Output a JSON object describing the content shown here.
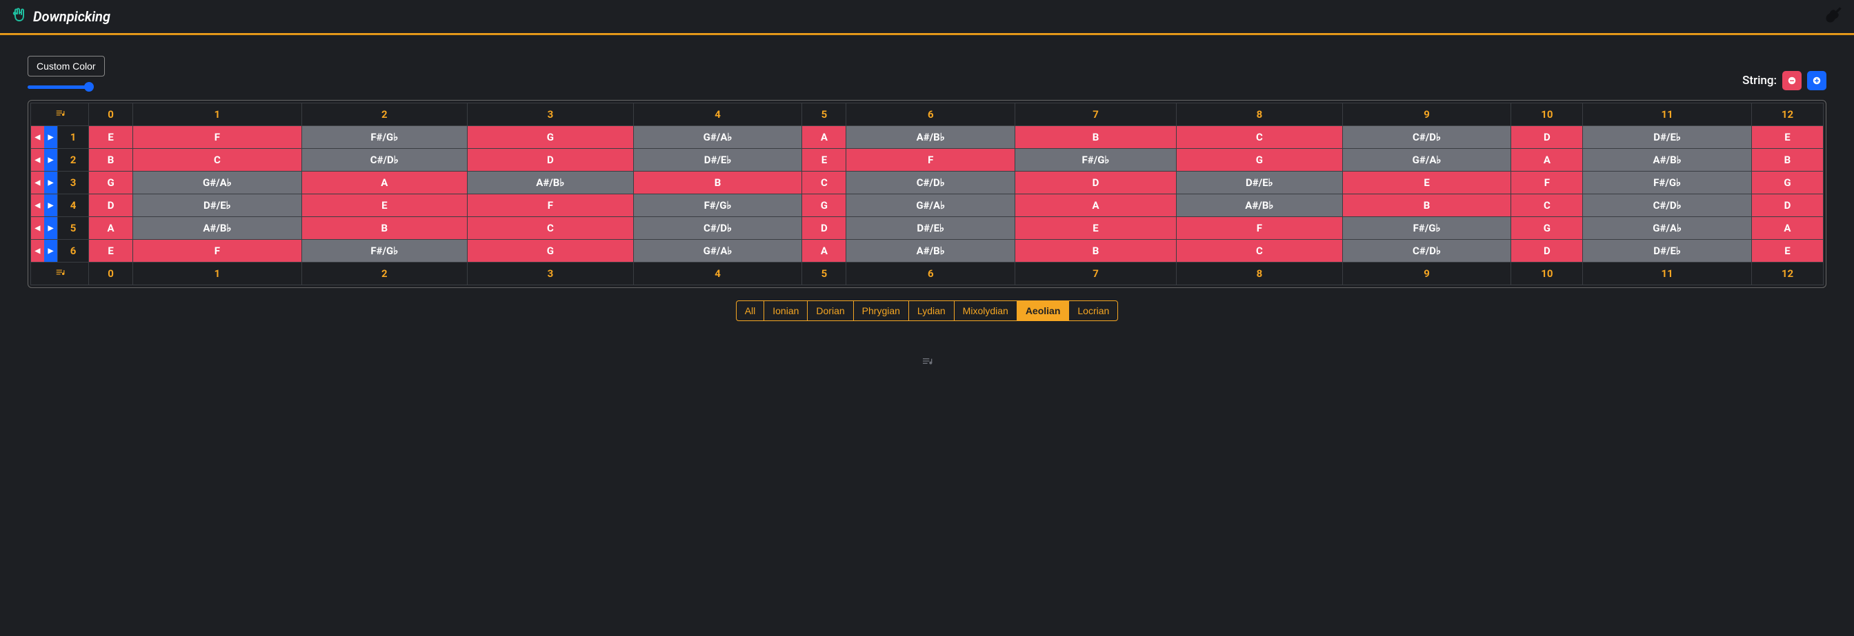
{
  "brand": {
    "title": "Downpicking"
  },
  "controls": {
    "custom_color_label": "Custom Color",
    "string_label": "String:"
  },
  "colors": {
    "accent": "#f5a623",
    "in_scale": "#e94560",
    "out_scale": "#6e7179",
    "slider": "#1566ff"
  },
  "fret_numbers": [
    "0",
    "1",
    "2",
    "3",
    "4",
    "5",
    "6",
    "7",
    "8",
    "9",
    "10",
    "11",
    "12"
  ],
  "strings": [
    {
      "num": "1",
      "notes": [
        {
          "n": "E",
          "c": "red"
        },
        {
          "n": "F",
          "c": "red"
        },
        {
          "n": "F#/G♭",
          "c": "gray"
        },
        {
          "n": "G",
          "c": "red"
        },
        {
          "n": "G#/A♭",
          "c": "gray"
        },
        {
          "n": "A",
          "c": "red"
        },
        {
          "n": "A#/B♭",
          "c": "gray"
        },
        {
          "n": "B",
          "c": "red"
        },
        {
          "n": "C",
          "c": "red"
        },
        {
          "n": "C#/D♭",
          "c": "gray"
        },
        {
          "n": "D",
          "c": "red"
        },
        {
          "n": "D#/E♭",
          "c": "gray"
        },
        {
          "n": "E",
          "c": "red"
        }
      ]
    },
    {
      "num": "2",
      "notes": [
        {
          "n": "B",
          "c": "red"
        },
        {
          "n": "C",
          "c": "red"
        },
        {
          "n": "C#/D♭",
          "c": "gray"
        },
        {
          "n": "D",
          "c": "red"
        },
        {
          "n": "D#/E♭",
          "c": "gray"
        },
        {
          "n": "E",
          "c": "red"
        },
        {
          "n": "F",
          "c": "red"
        },
        {
          "n": "F#/G♭",
          "c": "gray"
        },
        {
          "n": "G",
          "c": "red"
        },
        {
          "n": "G#/A♭",
          "c": "gray"
        },
        {
          "n": "A",
          "c": "red"
        },
        {
          "n": "A#/B♭",
          "c": "gray"
        },
        {
          "n": "B",
          "c": "red"
        }
      ]
    },
    {
      "num": "3",
      "notes": [
        {
          "n": "G",
          "c": "red"
        },
        {
          "n": "G#/A♭",
          "c": "gray"
        },
        {
          "n": "A",
          "c": "red"
        },
        {
          "n": "A#/B♭",
          "c": "gray"
        },
        {
          "n": "B",
          "c": "red"
        },
        {
          "n": "C",
          "c": "red"
        },
        {
          "n": "C#/D♭",
          "c": "gray"
        },
        {
          "n": "D",
          "c": "red"
        },
        {
          "n": "D#/E♭",
          "c": "gray"
        },
        {
          "n": "E",
          "c": "red"
        },
        {
          "n": "F",
          "c": "red"
        },
        {
          "n": "F#/G♭",
          "c": "gray"
        },
        {
          "n": "G",
          "c": "red"
        }
      ]
    },
    {
      "num": "4",
      "notes": [
        {
          "n": "D",
          "c": "red"
        },
        {
          "n": "D#/E♭",
          "c": "gray"
        },
        {
          "n": "E",
          "c": "red"
        },
        {
          "n": "F",
          "c": "red"
        },
        {
          "n": "F#/G♭",
          "c": "gray"
        },
        {
          "n": "G",
          "c": "red"
        },
        {
          "n": "G#/A♭",
          "c": "gray"
        },
        {
          "n": "A",
          "c": "red"
        },
        {
          "n": "A#/B♭",
          "c": "gray"
        },
        {
          "n": "B",
          "c": "red"
        },
        {
          "n": "C",
          "c": "red"
        },
        {
          "n": "C#/D♭",
          "c": "gray"
        },
        {
          "n": "D",
          "c": "red"
        }
      ]
    },
    {
      "num": "5",
      "notes": [
        {
          "n": "A",
          "c": "red"
        },
        {
          "n": "A#/B♭",
          "c": "gray"
        },
        {
          "n": "B",
          "c": "red"
        },
        {
          "n": "C",
          "c": "red"
        },
        {
          "n": "C#/D♭",
          "c": "gray"
        },
        {
          "n": "D",
          "c": "red"
        },
        {
          "n": "D#/E♭",
          "c": "gray"
        },
        {
          "n": "E",
          "c": "red"
        },
        {
          "n": "F",
          "c": "red"
        },
        {
          "n": "F#/G♭",
          "c": "gray"
        },
        {
          "n": "G",
          "c": "red"
        },
        {
          "n": "G#/A♭",
          "c": "gray"
        },
        {
          "n": "A",
          "c": "red"
        }
      ]
    },
    {
      "num": "6",
      "notes": [
        {
          "n": "E",
          "c": "red"
        },
        {
          "n": "F",
          "c": "red"
        },
        {
          "n": "F#/G♭",
          "c": "gray"
        },
        {
          "n": "G",
          "c": "red"
        },
        {
          "n": "G#/A♭",
          "c": "gray"
        },
        {
          "n": "A",
          "c": "red"
        },
        {
          "n": "A#/B♭",
          "c": "gray"
        },
        {
          "n": "B",
          "c": "red"
        },
        {
          "n": "C",
          "c": "red"
        },
        {
          "n": "C#/D♭",
          "c": "gray"
        },
        {
          "n": "D",
          "c": "red"
        },
        {
          "n": "D#/E♭",
          "c": "gray"
        },
        {
          "n": "E",
          "c": "red"
        }
      ]
    }
  ],
  "modes": {
    "items": [
      "All",
      "Ionian",
      "Dorian",
      "Phrygian",
      "Lydian",
      "Mixolydian",
      "Aeolian",
      "Locrian"
    ],
    "active": "Aeolian"
  }
}
